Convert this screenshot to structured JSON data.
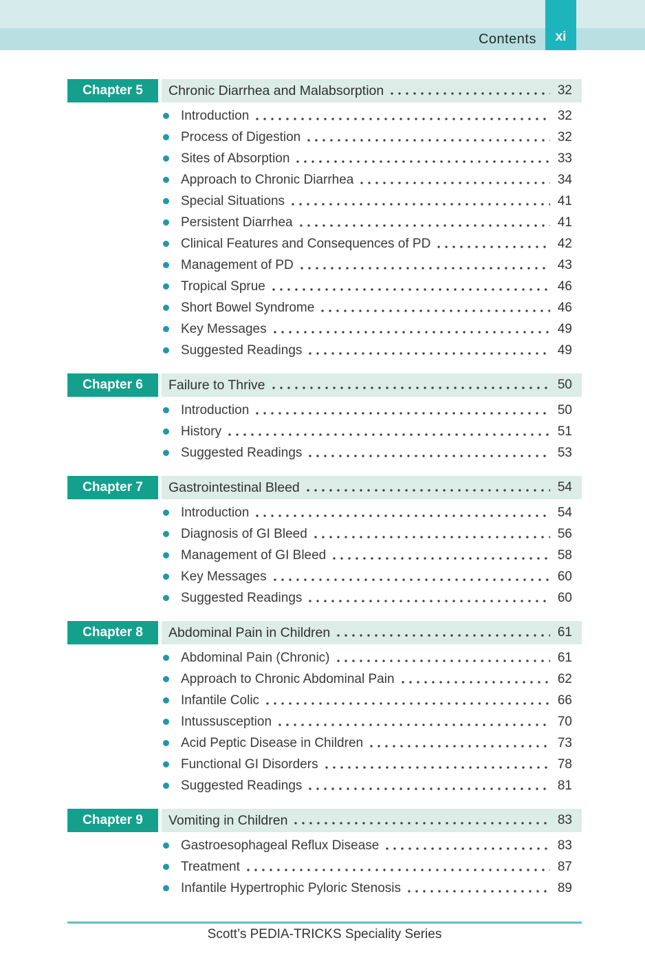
{
  "header": {
    "title": "Contents",
    "page_label": "xi"
  },
  "colors": {
    "chapter_badge": "#14a08d",
    "page_tab": "#1db5bb",
    "header_band_top": "#d5ebec",
    "header_band_bottom": "#b9dfe2",
    "chapter_row_bg": "#dcece7",
    "bullet": "#2397a6",
    "footer_line": "#63bdc3",
    "text": "#3a3a3a"
  },
  "chapters": [
    {
      "badge": "Chapter 5",
      "title": "Chronic Diarrhea and Malabsorption",
      "page": "32",
      "items": [
        {
          "label": "Introduction",
          "page": "32"
        },
        {
          "label": "Process of Digestion",
          "page": "32"
        },
        {
          "label": "Sites of Absorption",
          "page": "33"
        },
        {
          "label": "Approach to Chronic Diarrhea",
          "page": "34"
        },
        {
          "label": "Special Situations",
          "page": "41"
        },
        {
          "label": "Persistent Diarrhea",
          "page": "41"
        },
        {
          "label": "Clinical Features and Consequences of PD",
          "page": "42"
        },
        {
          "label": "Management of PD",
          "page": "43"
        },
        {
          "label": "Tropical Sprue",
          "page": "46"
        },
        {
          "label": "Short Bowel Syndrome",
          "page": "46"
        },
        {
          "label": "Key Messages",
          "page": "49"
        },
        {
          "label": "Suggested Readings",
          "page": "49"
        }
      ]
    },
    {
      "badge": "Chapter 6",
      "title": "Failure to Thrive",
      "page": "50",
      "items": [
        {
          "label": "Introduction",
          "page": "50"
        },
        {
          "label": "History",
          "page": "51"
        },
        {
          "label": "Suggested Readings",
          "page": "53"
        }
      ]
    },
    {
      "badge": "Chapter 7",
      "title": "Gastrointestinal Bleed",
      "page": "54",
      "items": [
        {
          "label": "Introduction",
          "page": "54"
        },
        {
          "label": "Diagnosis of GI Bleed",
          "page": "56"
        },
        {
          "label": "Management of GI Bleed",
          "page": "58"
        },
        {
          "label": "Key Messages",
          "page": "60"
        },
        {
          "label": "Suggested Readings",
          "page": "60"
        }
      ]
    },
    {
      "badge": "Chapter 8",
      "title": "Abdominal Pain in Children",
      "page": "61",
      "items": [
        {
          "label": "Abdominal Pain (Chronic)",
          "page": "61"
        },
        {
          "label": "Approach to Chronic Abdominal Pain",
          "page": "62"
        },
        {
          "label": "Infantile Colic",
          "page": "66"
        },
        {
          "label": "Intussusception",
          "page": "70"
        },
        {
          "label": "Acid Peptic Disease in Children",
          "page": "73"
        },
        {
          "label": "Functional GI Disorders",
          "page": "78"
        },
        {
          "label": "Suggested Readings",
          "page": "81"
        }
      ]
    },
    {
      "badge": "Chapter 9",
      "title": "Vomiting in Children",
      "page": "83",
      "items": [
        {
          "label": "Gastroesophageal Reflux Disease",
          "page": "83"
        },
        {
          "label": "Treatment",
          "page": "87"
        },
        {
          "label": "Infantile Hypertrophic Pyloric Stenosis",
          "page": "89"
        }
      ]
    }
  ],
  "footer": {
    "series_title": "Scott’s PEDIA-TRICKS Speciality Series"
  }
}
